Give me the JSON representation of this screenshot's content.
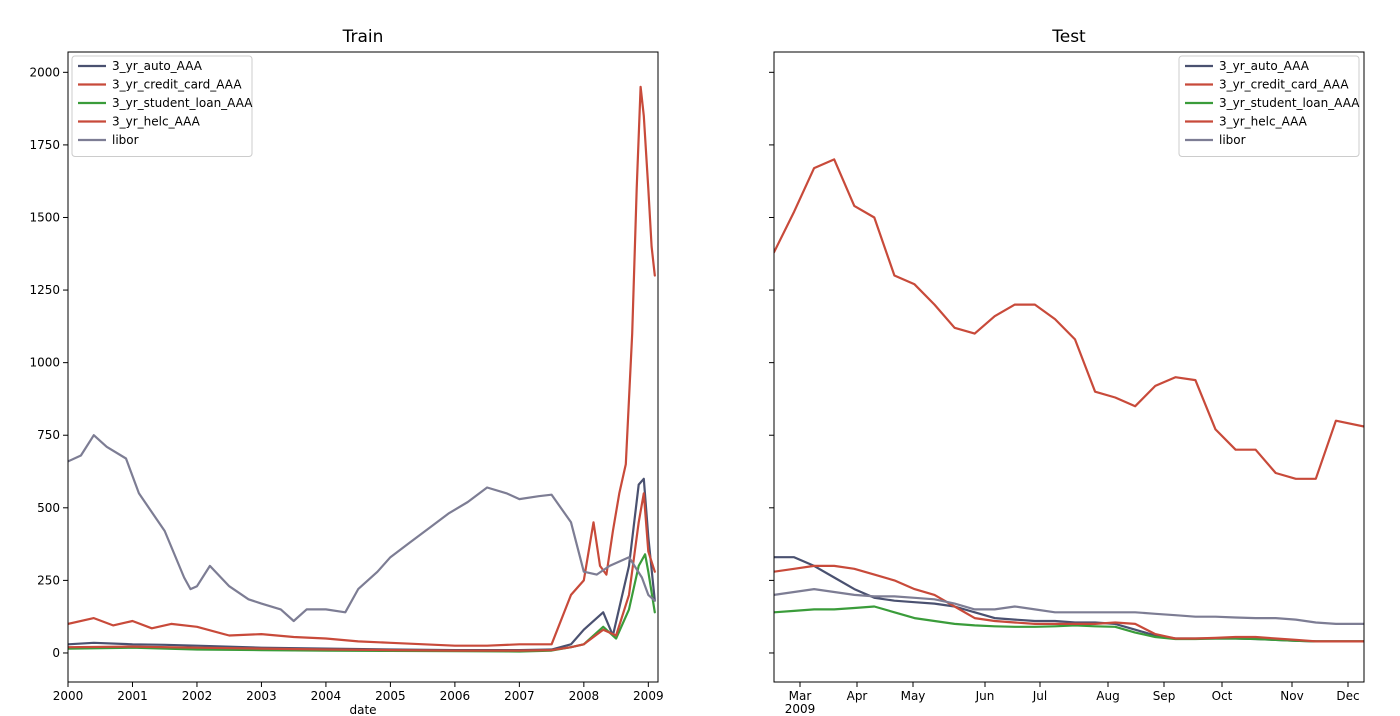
{
  "chart_data": [
    {
      "type": "line",
      "title": "Train",
      "xlabel": "date",
      "ylabel": "",
      "xlim": [
        2000.0,
        2009.15
      ],
      "ylim": [
        -100,
        2070
      ],
      "x_ticks": [
        "2000",
        "2001",
        "2002",
        "2003",
        "2004",
        "2005",
        "2006",
        "2007",
        "2008",
        "2009"
      ],
      "y_ticks": [
        "0",
        "250",
        "500",
        "750",
        "1000",
        "1250",
        "1500",
        "1750",
        "2000"
      ],
      "legend_position": "upper-left",
      "legend": [
        "3_yr_auto_AAA",
        "3_yr_credit_card_AAA",
        "3_yr_student_loan_AAA",
        "3_yr_helc_AAA",
        "libor"
      ],
      "series": [
        {
          "name": "3_yr_auto_AAA",
          "color": "#4a5170",
          "x": [
            2000.0,
            2000.4,
            2001.0,
            2001.5,
            2002.0,
            2003.0,
            2004.0,
            2005.0,
            2006.0,
            2007.0,
            2007.5,
            2007.8,
            2008.0,
            2008.3,
            2008.45,
            2008.7,
            2008.85,
            2008.93,
            2009.0,
            2009.1
          ],
          "y": [
            30,
            35,
            30,
            28,
            25,
            18,
            15,
            12,
            10,
            10,
            12,
            30,
            80,
            140,
            60,
            300,
            580,
            600,
            400,
            180
          ]
        },
        {
          "name": "3_yr_credit_card_AAA",
          "color": "#c84a3a",
          "x": [
            2000.0,
            2000.4,
            2000.7,
            2001.0,
            2001.3,
            2001.6,
            2002.0,
            2002.5,
            2003.0,
            2003.5,
            2004.0,
            2004.5,
            2005.0,
            2006.0,
            2006.5,
            2007.0,
            2007.5,
            2007.8,
            2008.0,
            2008.15,
            2008.25,
            2008.35,
            2008.45,
            2008.55,
            2008.65,
            2008.75,
            2008.82,
            2008.88,
            2008.93,
            2009.0,
            2009.05,
            2009.1
          ],
          "y": [
            100,
            120,
            95,
            110,
            85,
            100,
            90,
            60,
            65,
            55,
            50,
            40,
            35,
            25,
            25,
            30,
            30,
            200,
            250,
            450,
            300,
            270,
            420,
            550,
            650,
            1100,
            1600,
            1950,
            1850,
            1600,
            1400,
            1300
          ]
        },
        {
          "name": "3_yr_student_loan_AAA",
          "color": "#3a9c3a",
          "x": [
            2000.0,
            2001.0,
            2002.0,
            2003.0,
            2004.0,
            2005.0,
            2006.0,
            2007.0,
            2007.5,
            2007.8,
            2008.0,
            2008.3,
            2008.5,
            2008.7,
            2008.85,
            2008.95,
            2009.0,
            2009.1
          ],
          "y": [
            15,
            18,
            12,
            10,
            8,
            7,
            6,
            5,
            8,
            20,
            30,
            90,
            50,
            150,
            300,
            340,
            280,
            140
          ]
        },
        {
          "name": "3_yr_helc_AAA",
          "color": "#c84a3a",
          "x": [
            2000.0,
            2001.0,
            2002.0,
            2003.0,
            2004.0,
            2005.0,
            2006.0,
            2007.0,
            2007.5,
            2007.8,
            2008.0,
            2008.3,
            2008.5,
            2008.7,
            2008.85,
            2008.93,
            2009.0,
            2009.1
          ],
          "y": [
            20,
            22,
            18,
            15,
            12,
            10,
            8,
            8,
            10,
            20,
            30,
            80,
            60,
            200,
            450,
            550,
            350,
            280
          ]
        },
        {
          "name": "libor",
          "color": "#7d7d94",
          "x": [
            2000.0,
            2000.2,
            2000.4,
            2000.6,
            2000.9,
            2001.1,
            2001.5,
            2001.8,
            2001.9,
            2002.0,
            2002.2,
            2002.5,
            2002.8,
            2003.0,
            2003.3,
            2003.5,
            2003.7,
            2004.0,
            2004.3,
            2004.5,
            2004.8,
            2005.0,
            2005.3,
            2005.6,
            2005.9,
            2006.2,
            2006.5,
            2006.8,
            2007.0,
            2007.3,
            2007.5,
            2007.8,
            2008.0,
            2008.2,
            2008.4,
            2008.7,
            2008.9,
            2009.0,
            2009.1
          ],
          "y": [
            660,
            680,
            750,
            710,
            670,
            550,
            420,
            260,
            220,
            230,
            300,
            230,
            185,
            170,
            150,
            110,
            150,
            150,
            140,
            220,
            280,
            330,
            380,
            430,
            480,
            520,
            570,
            550,
            530,
            540,
            545,
            450,
            280,
            270,
            300,
            330,
            260,
            200,
            180
          ]
        }
      ]
    },
    {
      "type": "line",
      "title": "Test",
      "xlabel": "",
      "ylabel": "",
      "xlim": [
        0,
        294
      ],
      "ylim": [
        -100,
        2070
      ],
      "x_ticks": [
        "Mar\n2009",
        "Apr",
        "May",
        "Jun",
        "Jul",
        "Aug",
        "Sep",
        "Oct",
        "Nov",
        "Dec"
      ],
      "y_ticks": [],
      "legend_position": "upper-right",
      "legend": [
        "3_yr_auto_AAA",
        "3_yr_credit_card_AAA",
        "3_yr_student_loan_AAA",
        "3_yr_helc_AAA",
        "libor"
      ],
      "series": [
        {
          "name": "3_yr_auto_AAA",
          "color": "#4a5170",
          "x": [
            0,
            10,
            20,
            30,
            40,
            50,
            60,
            70,
            80,
            90,
            100,
            110,
            120,
            130,
            140,
            150,
            160,
            170,
            180,
            190,
            200,
            210,
            220,
            230,
            240,
            250,
            260,
            270,
            280,
            294
          ],
          "y": [
            330,
            330,
            300,
            260,
            220,
            190,
            180,
            175,
            170,
            160,
            140,
            120,
            115,
            110,
            110,
            105,
            105,
            100,
            80,
            60,
            50,
            50,
            50,
            50,
            48,
            45,
            42,
            40,
            40,
            40
          ]
        },
        {
          "name": "3_yr_credit_card_AAA",
          "color": "#c84a3a",
          "x": [
            0,
            10,
            20,
            30,
            40,
            50,
            60,
            70,
            80,
            90,
            100,
            110,
            120,
            130,
            140,
            150,
            160,
            170,
            180,
            190,
            200,
            210,
            220,
            230,
            240,
            250,
            260,
            270,
            280,
            294
          ],
          "y": [
            1380,
            1520,
            1670,
            1700,
            1540,
            1500,
            1300,
            1270,
            1200,
            1120,
            1100,
            1160,
            1200,
            1200,
            1150,
            1080,
            900,
            880,
            850,
            920,
            950,
            940,
            770,
            700,
            700,
            620,
            600,
            600,
            800,
            780
          ]
        },
        {
          "name": "3_yr_student_loan_AAA",
          "color": "#3a9c3a",
          "x": [
            0,
            10,
            20,
            30,
            40,
            50,
            60,
            70,
            80,
            90,
            100,
            110,
            120,
            130,
            140,
            150,
            160,
            170,
            180,
            190,
            200,
            210,
            220,
            230,
            240,
            250,
            260,
            270,
            280,
            294
          ],
          "y": [
            140,
            145,
            150,
            150,
            155,
            160,
            140,
            120,
            110,
            100,
            95,
            92,
            90,
            90,
            92,
            95,
            92,
            90,
            70,
            55,
            48,
            48,
            50,
            50,
            48,
            45,
            42,
            40,
            40,
            40
          ]
        },
        {
          "name": "3_yr_helc_AAA",
          "color": "#c84a3a",
          "x": [
            0,
            10,
            20,
            30,
            40,
            50,
            60,
            70,
            80,
            90,
            100,
            110,
            120,
            130,
            140,
            150,
            160,
            170,
            180,
            190,
            200,
            210,
            220,
            230,
            240,
            250,
            260,
            270,
            280,
            294
          ],
          "y": [
            280,
            290,
            300,
            300,
            290,
            270,
            250,
            220,
            200,
            160,
            120,
            110,
            105,
            100,
            100,
            100,
            100,
            105,
            100,
            65,
            50,
            50,
            52,
            55,
            55,
            50,
            45,
            40,
            40,
            40
          ]
        },
        {
          "name": "libor",
          "color": "#7d7d94",
          "x": [
            0,
            10,
            20,
            30,
            40,
            50,
            60,
            70,
            80,
            90,
            100,
            110,
            120,
            130,
            140,
            150,
            160,
            170,
            180,
            190,
            200,
            210,
            220,
            230,
            240,
            250,
            260,
            270,
            280,
            294
          ],
          "y": [
            200,
            210,
            220,
            210,
            200,
            195,
            195,
            190,
            185,
            170,
            150,
            150,
            160,
            150,
            140,
            140,
            140,
            140,
            140,
            135,
            130,
            125,
            125,
            122,
            120,
            120,
            115,
            105,
            100,
            100
          ]
        }
      ]
    }
  ]
}
